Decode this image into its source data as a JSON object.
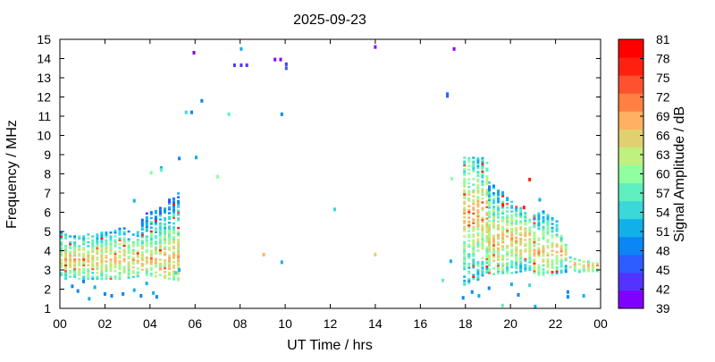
{
  "chart_data": {
    "type": "heatmap",
    "title": "2025-09-23",
    "xlabel": "UT Time / hrs",
    "ylabel": "Frequency / MHz",
    "xlim": [
      0,
      24
    ],
    "ylim": [
      1,
      15
    ],
    "x_ticks": [
      "00",
      "02",
      "04",
      "06",
      "08",
      "10",
      "12",
      "14",
      "16",
      "18",
      "20",
      "22",
      "00"
    ],
    "y_ticks": [
      "1",
      "2",
      "3",
      "4",
      "5",
      "6",
      "7",
      "8",
      "9",
      "10",
      "11",
      "12",
      "13",
      "14",
      "15"
    ],
    "colorbar": {
      "label": "Signal Amplitude / dB",
      "levels": [
        "39",
        "42",
        "45",
        "48",
        "51",
        "54",
        "57",
        "60",
        "63",
        "66",
        "69",
        "72",
        "75",
        "78",
        "81"
      ],
      "colors": [
        "#8000ff",
        "#5533ff",
        "#2d5cff",
        "#0a86f5",
        "#12b0e8",
        "#3ad8d8",
        "#60f0c0",
        "#90ffa0",
        "#c0f080",
        "#e0d070",
        "#ffb060",
        "#ff8040",
        "#ff5030",
        "#ff2010",
        "#ff0000"
      ]
    },
    "points": [
      [
        5.95,
        14.3,
        40
      ],
      [
        8.05,
        14.5,
        52
      ],
      [
        7.75,
        13.65,
        44
      ],
      [
        8.05,
        13.65,
        44
      ],
      [
        8.3,
        13.65,
        44
      ],
      [
        9.55,
        13.95,
        40
      ],
      [
        9.8,
        13.95,
        40
      ],
      [
        10.05,
        13.7,
        44
      ],
      [
        10.05,
        13.5,
        47
      ],
      [
        14.0,
        14.6,
        40
      ],
      [
        17.5,
        14.5,
        40
      ],
      [
        17.2,
        12.15,
        46
      ],
      [
        17.2,
        12.05,
        46
      ],
      [
        6.3,
        11.8,
        48
      ],
      [
        5.6,
        11.2,
        56
      ],
      [
        5.85,
        11.2,
        50
      ],
      [
        7.5,
        11.1,
        57
      ],
      [
        9.85,
        11.1,
        50
      ],
      [
        5.3,
        8.8,
        50
      ],
      [
        6.05,
        8.85,
        52
      ],
      [
        4.5,
        8.3,
        52
      ],
      [
        4.5,
        8.2,
        57
      ],
      [
        4.05,
        8.05,
        61
      ],
      [
        7.0,
        7.85,
        60
      ],
      [
        17.4,
        7.75,
        62
      ],
      [
        20.85,
        7.7,
        79
      ],
      [
        3.3,
        6.6,
        52
      ],
      [
        12.2,
        6.15,
        55
      ],
      [
        20.6,
        6.25,
        79
      ],
      [
        21.3,
        6.65,
        52
      ],
      [
        9.05,
        3.8,
        69
      ],
      [
        9.85,
        3.4,
        53
      ],
      [
        14.0,
        3.8,
        66
      ],
      [
        17.0,
        2.45,
        57
      ],
      [
        17.35,
        3.45,
        53
      ],
      [
        0.55,
        2.15,
        50
      ],
      [
        0.8,
        1.9,
        50
      ],
      [
        1.05,
        2.4,
        50
      ],
      [
        1.3,
        1.5,
        52
      ],
      [
        1.55,
        2.1,
        51
      ],
      [
        2.0,
        1.75,
        49
      ],
      [
        2.3,
        1.65,
        50
      ],
      [
        2.8,
        1.75,
        49
      ],
      [
        3.3,
        1.95,
        51
      ],
      [
        3.6,
        1.65,
        50
      ],
      [
        3.85,
        2.3,
        52
      ],
      [
        4.15,
        1.8,
        51
      ],
      [
        4.3,
        1.6,
        50
      ],
      [
        5.15,
        2.85,
        54
      ],
      [
        5.3,
        3.0,
        52
      ],
      [
        17.9,
        1.55,
        49
      ],
      [
        18.3,
        1.85,
        50
      ],
      [
        18.6,
        1.65,
        51
      ],
      [
        19.05,
        2.05,
        49
      ],
      [
        19.65,
        1.15,
        57
      ],
      [
        20.05,
        2.25,
        51
      ],
      [
        20.35,
        1.7,
        50
      ],
      [
        20.85,
        2.2,
        54
      ],
      [
        21.1,
        1.1,
        51
      ],
      [
        22.55,
        1.6,
        50
      ],
      [
        22.55,
        1.85,
        49
      ],
      [
        23.25,
        1.65,
        53
      ]
    ],
    "clusters": [
      {
        "x0": 0.0,
        "x1": 5.4,
        "ylo": [
          2.6,
          2.6,
          2.6,
          2.6,
          2.6,
          2.6,
          2.7,
          2.8,
          2.7,
          2.6,
          2.5
        ],
        "yhi": [
          5.1,
          4.8,
          4.9,
          5.0,
          5.1,
          5.3,
          5.0,
          6.0,
          6.3,
          6.8,
          7.2
        ],
        "yc": 3.6,
        "seed": 11
      },
      {
        "x0": 17.9,
        "x1": 19.0,
        "ylo": [
          2.2,
          2.3,
          2.5,
          2.8,
          3.0
        ],
        "yhi": [
          8.9,
          8.9,
          8.9,
          8.9,
          8.6
        ],
        "yc": 5.9,
        "seed": 23
      },
      {
        "x0": 19.0,
        "x1": 21.0,
        "ylo": [
          2.8,
          2.9,
          2.9,
          3.0,
          3.1
        ],
        "yhi": [
          7.6,
          7.3,
          6.6,
          6.2,
          5.4
        ],
        "yc": 4.6,
        "seed": 37
      },
      {
        "x0": 21.0,
        "x1": 22.6,
        "ylo": [
          2.8,
          2.8,
          2.9,
          3.0
        ],
        "yhi": [
          5.9,
          6.2,
          5.5,
          3.8
        ],
        "yc": 4.0,
        "seed": 41
      },
      {
        "x0": 22.6,
        "x1": 24.0,
        "ylo": [
          2.9,
          3.0,
          3.0
        ],
        "yhi": [
          3.8,
          3.5,
          3.6
        ],
        "yc": 3.3,
        "seed": 53
      }
    ]
  }
}
